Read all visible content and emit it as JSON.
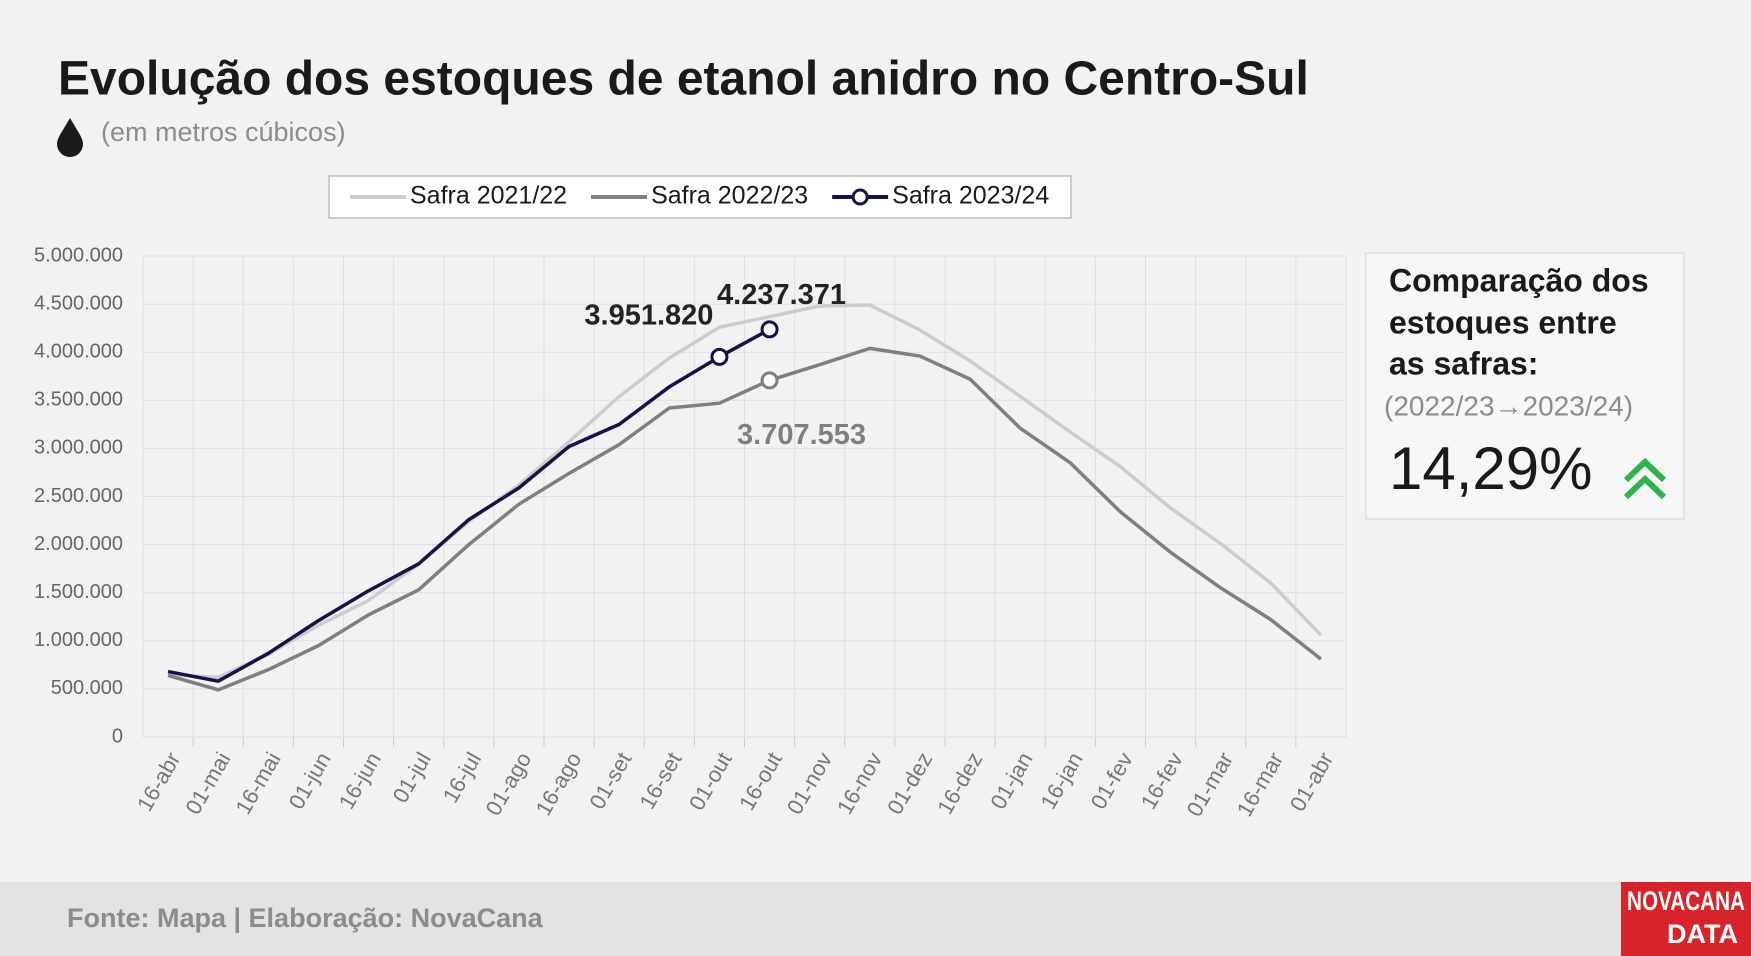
{
  "chart_data": {
    "type": "line",
    "title": "Evolução dos estoques de etanol anidro no Centro-Sul",
    "subtitle": "(em metros cúbicos)",
    "categories": [
      "16-abr",
      "01-mai",
      "16-mai",
      "01-jun",
      "16-jun",
      "01-jul",
      "16-jul",
      "01-ago",
      "16-ago",
      "01-set",
      "16-set",
      "01-out",
      "16-out",
      "01-nov",
      "16-nov",
      "01-dez",
      "16-dez",
      "01-jan",
      "16-jan",
      "01-fev",
      "16-fev",
      "01-mar",
      "16-mar",
      "01-abr"
    ],
    "series": [
      {
        "name": "Safra 2021/22",
        "color": "#cccccc",
        "values": [
          650000,
          620000,
          860000,
          1160000,
          1420000,
          1800000,
          2240000,
          2620000,
          3070000,
          3540000,
          3940000,
          4260000,
          4370000,
          4480000,
          4490000,
          4230000,
          3910000,
          3540000,
          3170000,
          2810000,
          2380000,
          2010000,
          1600000,
          1060000
        ]
      },
      {
        "name": "Safra 2022/23",
        "color": "#7f7f7f",
        "values": [
          640000,
          490000,
          700000,
          950000,
          1270000,
          1530000,
          2000000,
          2420000,
          2740000,
          3040000,
          3420000,
          3470000,
          3707553,
          3870000,
          4040000,
          3960000,
          3720000,
          3210000,
          2850000,
          2340000,
          1920000,
          1550000,
          1220000,
          810000
        ],
        "value_labels": [
          null,
          null,
          null,
          null,
          null,
          null,
          null,
          null,
          null,
          null,
          null,
          null,
          "3.707.553",
          null,
          null,
          null,
          null,
          null,
          null,
          null,
          null,
          null,
          null,
          null
        ]
      },
      {
        "name": "Safra 2023/24",
        "color": "#14124a",
        "values": [
          680000,
          580000,
          870000,
          1210000,
          1520000,
          1800000,
          2260000,
          2590000,
          3020000,
          3250000,
          3640000,
          3951820,
          4237371,
          null,
          null,
          null,
          null,
          null,
          null,
          null,
          null,
          null,
          null,
          null
        ],
        "value_labels": [
          null,
          null,
          null,
          null,
          null,
          null,
          null,
          null,
          null,
          null,
          null,
          "3.951.820",
          "4.237.371",
          null,
          null,
          null,
          null,
          null,
          null,
          null,
          null,
          null,
          null,
          null
        ]
      }
    ],
    "ylim": [
      0,
      5000000
    ],
    "yticks": [
      0,
      {
        "value": 500000,
        "label": "500.000"
      },
      {
        "value": 1000000,
        "label": "1.000.000"
      },
      {
        "value": 1500000,
        "label": "1.500.000"
      },
      {
        "value": 2000000,
        "label": "2.000.000"
      },
      {
        "value": 2500000,
        "label": "2.500.000"
      },
      {
        "value": 3000000,
        "label": "3.000.000"
      },
      {
        "value": 3500000,
        "label": "3.500.000"
      },
      {
        "value": 4000000,
        "label": "4.000.000"
      },
      {
        "value": 4500000,
        "label": "4.500.000"
      },
      {
        "value": 5000000,
        "label": "5.000.000"
      }
    ],
    "grid": true,
    "legend": "top",
    "panel": {
      "title_lines": [
        "Comparação dos",
        "estoques entre",
        "as safras:"
      ],
      "period": "(2022/23→2023/24)",
      "change": "14,29%"
    },
    "source": "Fonte: Mapa | Elaboração: NovaCana",
    "brand": [
      "NOVACANA",
      "DATA"
    ]
  }
}
